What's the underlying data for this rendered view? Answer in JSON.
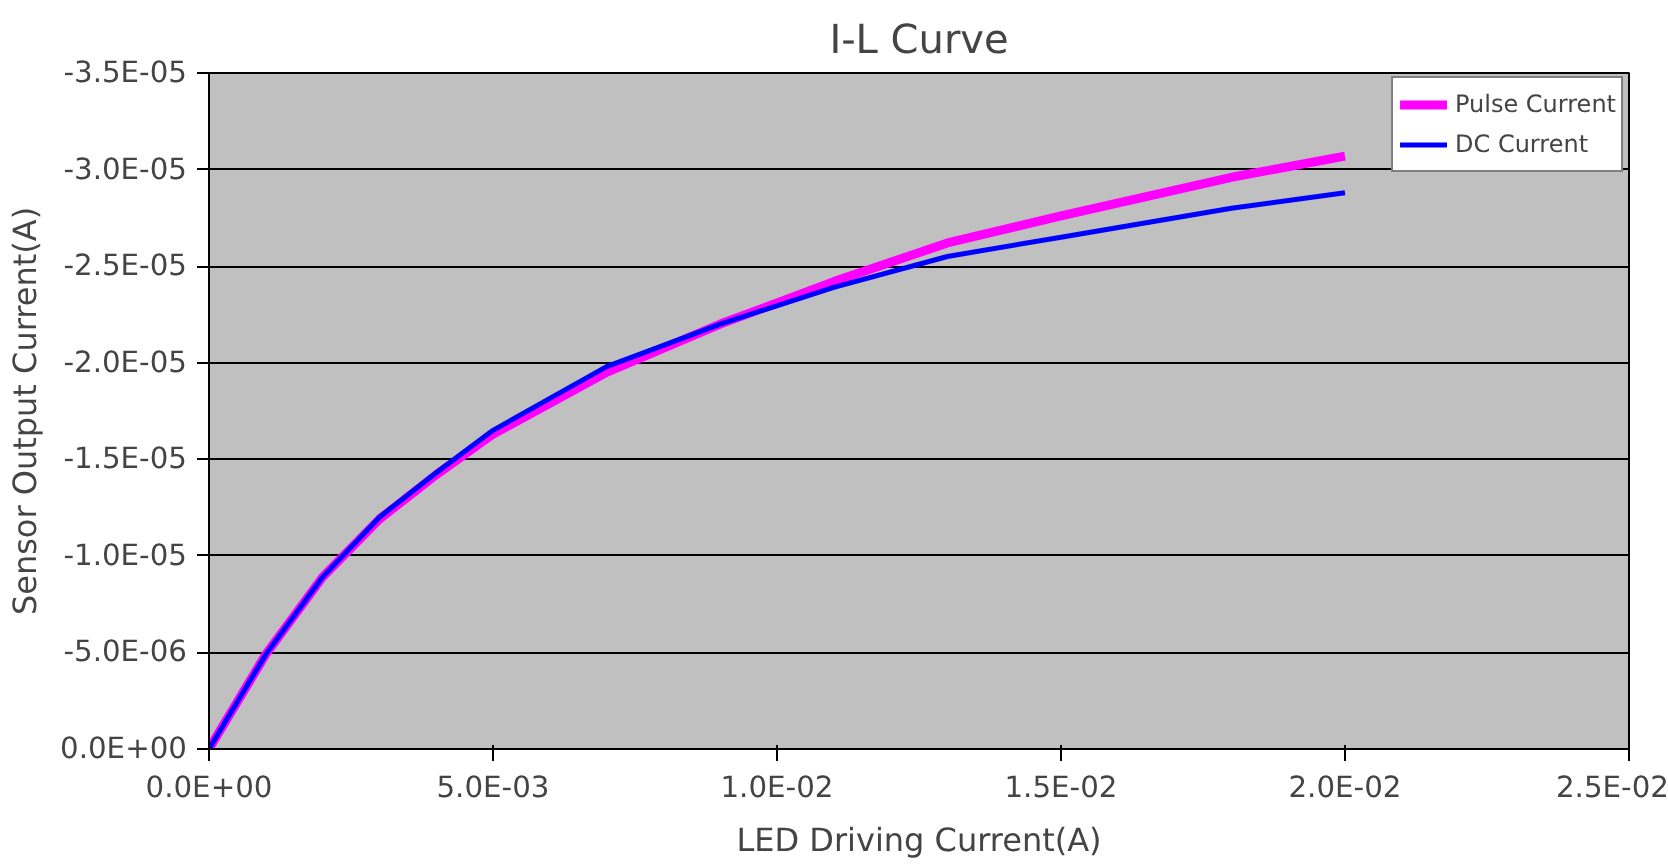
{
  "chart_data": {
    "type": "line",
    "title": "I-L Curve",
    "xlabel": "LED Driving Current(A)",
    "ylabel": "Sensor Output Current(A)",
    "x": [
      0,
      0.001,
      0.002,
      0.003,
      0.004,
      0.005,
      0.007,
      0.009,
      0.011,
      0.013,
      0.015,
      0.018,
      0.02
    ],
    "series": [
      {
        "name": "Pulse Current",
        "color": "#ff00ff",
        "values": [
          0,
          -4.9e-06,
          -8.9e-06,
          -1.19e-05,
          -1.42e-05,
          -1.63e-05,
          -1.95e-05,
          -2.2e-05,
          -2.42e-05,
          -2.62e-05,
          -2.76e-05,
          -2.96e-05,
          -3.07e-05
        ]
      },
      {
        "name": "DC Current",
        "color": "#0000ff",
        "values": [
          0,
          -4.9e-06,
          -8.9e-06,
          -1.2e-05,
          -1.43e-05,
          -1.65e-05,
          -1.98e-05,
          -2.2e-05,
          -2.39e-05,
          -2.55e-05,
          -2.65e-05,
          -2.8e-05,
          -2.88e-05
        ]
      }
    ],
    "xlim": [
      0,
      0.025
    ],
    "xticks": [
      {
        "value": 0,
        "label": "0.0E+00"
      },
      {
        "value": 0.005,
        "label": "5.0E-03"
      },
      {
        "value": 0.01,
        "label": "1.0E-02"
      },
      {
        "value": 0.015,
        "label": "1.5E-02"
      },
      {
        "value": 0.02,
        "label": "2.0E-02"
      },
      {
        "value": 0.025,
        "label": "2.5E-02"
      }
    ],
    "ylim": [
      0,
      -3.5e-05
    ],
    "yticks": [
      {
        "value": 0,
        "label": "0.0E+00"
      },
      {
        "value": -5e-06,
        "label": "-5.0E-06"
      },
      {
        "value": -1e-05,
        "label": "-1.0E-05"
      },
      {
        "value": -1.5e-05,
        "label": "-1.5E-05"
      },
      {
        "value": -2e-05,
        "label": "-2.0E-05"
      },
      {
        "value": -2.5e-05,
        "label": "-2.5E-05"
      },
      {
        "value": -3e-05,
        "label": "-3.0E-05"
      },
      {
        "value": -3.5e-05,
        "label": "-3.5E-05"
      }
    ],
    "grid": "y",
    "legend": "top right",
    "marker": "none",
    "line_style": "solid"
  }
}
